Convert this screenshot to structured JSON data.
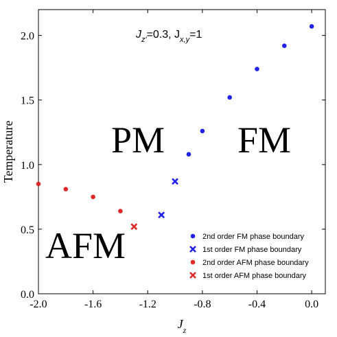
{
  "chart_data": {
    "type": "scatter",
    "xlabel": "J_z",
    "ylabel": "Temperature",
    "xlim": [
      -2.0,
      0.1
    ],
    "ylim": [
      0.0,
      2.2
    ],
    "xticks": [
      -2.0,
      -1.6,
      -1.2,
      -0.8,
      -0.4,
      0.0
    ],
    "xtick_labels": [
      "-2.0",
      "-1.6",
      "-1.2",
      "-0.8",
      "-0.4",
      "0.0"
    ],
    "yticks": [
      0.0,
      0.5,
      1.0,
      1.5,
      2.0
    ],
    "ytick_labels": [
      "0.0",
      "0.5",
      "1.0",
      "1.5",
      "2.0"
    ],
    "grid": false,
    "legend_position": "bottom-right",
    "annotation": {
      "text_main": "J",
      "text_sub1": "z′",
      "text_mid": "=0.3, J",
      "text_sub2": "x,y",
      "text_end": "=1"
    },
    "region_labels": [
      "PM",
      "FM",
      "AFM"
    ],
    "series": [
      {
        "name": "2nd order FM phase boundary",
        "color": "#2222ee",
        "marker": "dot",
        "x": [
          0.0,
          -0.2,
          -0.4,
          -0.6,
          -0.8,
          -0.9
        ],
        "y": [
          2.07,
          1.92,
          1.74,
          1.52,
          1.26,
          1.08
        ]
      },
      {
        "name": "1st order FM phase boundary",
        "color": "#2222ee",
        "marker": "x",
        "x": [
          -1.0,
          -1.1
        ],
        "y": [
          0.87,
          0.61
        ]
      },
      {
        "name": "2nd order AFM phase boundary",
        "color": "#e02a2a",
        "marker": "dot",
        "x": [
          -2.0,
          -1.8,
          -1.6,
          -1.4
        ],
        "y": [
          0.85,
          0.81,
          0.75,
          0.64
        ]
      },
      {
        "name": "1st order AFM phase boundary",
        "color": "#e02a2a",
        "marker": "x",
        "x": [
          -1.3
        ],
        "y": [
          0.52
        ]
      }
    ]
  }
}
